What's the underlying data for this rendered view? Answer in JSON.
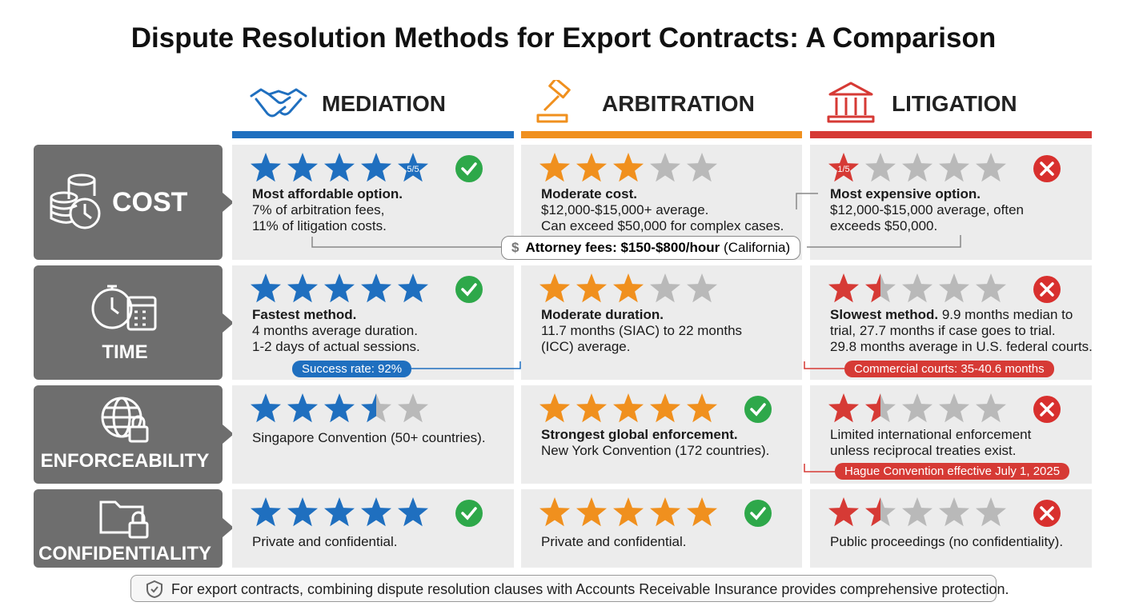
{
  "title": "Dispute Resolution Methods for Export Contracts: A Comparison",
  "columns": [
    {
      "name": "MEDIATION",
      "color": "#1f6fbf"
    },
    {
      "name": "ARBITRATION",
      "color": "#f0901e"
    },
    {
      "name": "LITIGATION",
      "color": "#d63a35"
    }
  ],
  "rows": [
    {
      "label": "COST",
      "callout": {
        "bold": "Attorney fees: $150-$800/hour",
        "text": "(California)"
      },
      "cells": [
        {
          "rating": 5,
          "rating_label": "5/5",
          "status": "check",
          "lines": [
            {
              "bold": "Most affordable option."
            },
            {
              "text": "7% of arbitration fees,"
            },
            {
              "text": "11% of litigation costs."
            }
          ]
        },
        {
          "rating": 3,
          "lines": [
            {
              "bold": "Moderate cost."
            },
            {
              "text": "$12,000-$15,000+ average."
            },
            {
              "text": "Can exceed $50,000 for complex cases."
            }
          ]
        },
        {
          "rating": 1,
          "rating_label": "1/5",
          "status": "cross",
          "lines": [
            {
              "bold": "Most expensive option."
            },
            {
              "text": "$12,000-$15,000 average, often"
            },
            {
              "text": "exceeds $50,000."
            }
          ]
        }
      ]
    },
    {
      "label": "TIME",
      "cells": [
        {
          "rating": 5,
          "status": "check",
          "lines": [
            {
              "bold": "Fastest method."
            },
            {
              "text": "4 months average duration."
            },
            {
              "text": "1-2 days of actual sessions."
            }
          ],
          "callout": "Success rate: 92%"
        },
        {
          "rating": 3,
          "lines": [
            {
              "bold": "Moderate duration."
            },
            {
              "text": "11.7 months (SIAC) to 22 months"
            },
            {
              "text": "(ICC) average."
            }
          ]
        },
        {
          "rating": 1.5,
          "status": "cross",
          "lines": [
            {
              "bold": "Slowest method.",
              "text": "9.9 months median to"
            },
            {
              "text": "trial, 27.7 months if case goes to trial."
            },
            {
              "text": "29.8 months average in U.S. federal courts."
            }
          ],
          "callout": "Commercial courts: 35-40.6 months"
        }
      ]
    },
    {
      "label": "ENFORCEABILITY",
      "cells": [
        {
          "rating": 3.5,
          "lines": [
            {
              "text": "Singapore Convention (50+ countries)."
            }
          ]
        },
        {
          "rating": 5,
          "status": "check",
          "lines": [
            {
              "bold": "Strongest global enforcement."
            },
            {
              "text": "New York Convention (172 countries)."
            }
          ]
        },
        {
          "rating": 1.5,
          "status": "cross",
          "lines": [
            {
              "text": "Limited international enforcement"
            },
            {
              "text": "unless reciprocal treaties exist."
            }
          ],
          "callout": "Hague Convention effective July 1, 2025"
        }
      ]
    },
    {
      "label": "CONFIDENTIALITY",
      "cells": [
        {
          "rating": 5,
          "status": "check",
          "lines": [
            {
              "text": "Private and confidential."
            }
          ]
        },
        {
          "rating": 5,
          "status": "check",
          "lines": [
            {
              "text": "Private and confidential."
            }
          ]
        },
        {
          "rating": 1.5,
          "status": "cross",
          "lines": [
            {
              "text": "Public proceedings (no confidentiality)."
            }
          ]
        }
      ]
    }
  ],
  "footer": "For export contracts, combining dispute resolution clauses with Accounts Receivable Insurance provides comprehensive protection."
}
